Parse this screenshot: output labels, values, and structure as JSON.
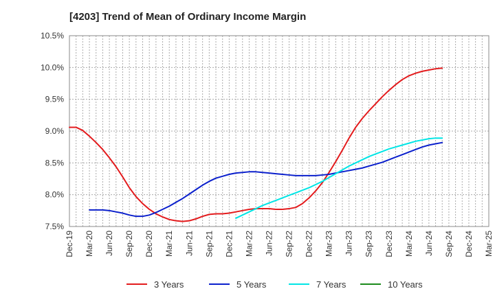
{
  "chart_data": {
    "type": "line",
    "title": "[4203]  Trend of Mean of Ordinary Income Margin",
    "xlabel": "",
    "ylabel": "",
    "ylim": [
      7.5,
      10.5
    ],
    "y_ticks": [
      7.5,
      8.0,
      8.5,
      9.0,
      9.5,
      10.0,
      10.5
    ],
    "y_tick_labels": [
      "7.5%",
      "8.0%",
      "8.5%",
      "9.0%",
      "9.5%",
      "10.0%",
      "10.5%"
    ],
    "x_tick_labels": [
      "Dec-19",
      "Mar-20",
      "Jun-20",
      "Sep-20",
      "Dec-20",
      "Mar-21",
      "Jun-21",
      "Sep-21",
      "Dec-21",
      "Mar-22",
      "Jun-22",
      "Sep-22",
      "Dec-22",
      "Mar-23",
      "Jun-23",
      "Sep-23",
      "Dec-23",
      "Mar-24",
      "Jun-24",
      "Sep-24",
      "Dec-24",
      "Mar-25"
    ],
    "grid": true,
    "legend_position": "bottom",
    "series": [
      {
        "name": "3 Years",
        "color": "#e31a1c",
        "values": [
          9.06,
          9.06,
          9.01,
          8.92,
          8.82,
          8.71,
          8.58,
          8.44,
          8.28,
          8.11,
          7.97,
          7.86,
          7.77,
          7.7,
          7.65,
          7.61,
          7.59,
          7.58,
          7.59,
          7.62,
          7.66,
          7.69,
          7.7,
          7.7,
          7.71,
          7.73,
          7.75,
          7.77,
          7.78,
          7.78,
          7.78,
          7.77,
          7.77,
          7.78,
          7.8,
          7.86,
          7.95,
          8.06,
          8.19,
          8.35,
          8.52,
          8.7,
          8.89,
          9.06,
          9.2,
          9.32,
          9.43,
          9.54,
          9.64,
          9.73,
          9.81,
          9.87,
          9.91,
          9.94,
          9.96,
          9.98,
          9.99
        ]
      },
      {
        "name": "5 Years",
        "color": "#0a1fcc",
        "values": [
          null,
          null,
          null,
          7.76,
          7.76,
          7.76,
          7.75,
          7.73,
          7.71,
          7.68,
          7.66,
          7.66,
          7.68,
          7.72,
          7.77,
          7.82,
          7.88,
          7.94,
          8.01,
          8.08,
          8.15,
          8.21,
          8.26,
          8.29,
          8.32,
          8.34,
          8.35,
          8.36,
          8.36,
          8.35,
          8.34,
          8.33,
          8.32,
          8.31,
          8.3,
          8.3,
          8.3,
          8.3,
          8.31,
          8.32,
          8.34,
          8.36,
          8.38,
          8.4,
          8.42,
          8.45,
          8.48,
          8.51,
          8.55,
          8.59,
          8.63,
          8.67,
          8.71,
          8.75,
          8.78,
          8.8,
          8.82
        ]
      },
      {
        "name": "7 Years",
        "color": "#00e5e5",
        "values": [
          null,
          null,
          null,
          null,
          null,
          null,
          null,
          null,
          null,
          null,
          null,
          null,
          null,
          null,
          null,
          null,
          null,
          null,
          null,
          null,
          null,
          null,
          null,
          null,
          null,
          7.63,
          7.68,
          7.73,
          7.78,
          7.83,
          7.87,
          7.91,
          7.95,
          7.99,
          8.03,
          8.07,
          8.11,
          8.16,
          8.21,
          8.27,
          8.33,
          8.39,
          8.45,
          8.5,
          8.55,
          8.6,
          8.64,
          8.68,
          8.72,
          8.75,
          8.78,
          8.81,
          8.84,
          8.86,
          8.88,
          8.89,
          8.89
        ]
      },
      {
        "name": "10 Years",
        "color": "#1a8a1a",
        "values": []
      }
    ]
  }
}
